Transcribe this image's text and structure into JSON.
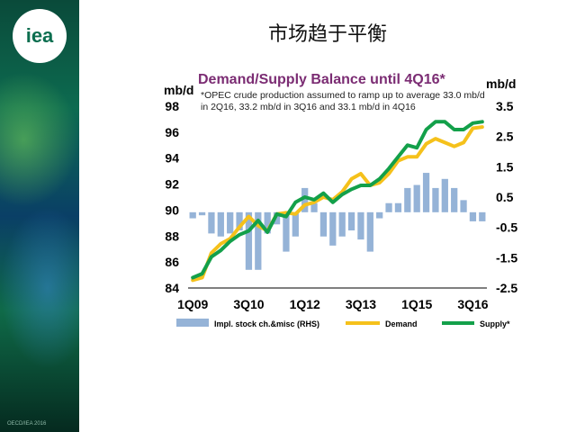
{
  "slide": {
    "title": "市场趋于平衡",
    "logo_text": "iea",
    "footer": "OECD/IEA 2016"
  },
  "colors": {
    "bar": "#95b3d7",
    "demand": "#f5c11b",
    "supply": "#13a04a",
    "title": "#7b2c73"
  },
  "chart_data": {
    "type": "bar+line",
    "title": "Demand/Supply Balance until 4Q16*",
    "note": "*OPEC crude production assumed to ramp up to average 33.0 mb/d in 2Q16, 33.2 mb/d in 3Q16 and 33.1 mb/d in 4Q16",
    "ylabel_left": "mb/d",
    "ylabel_right": "mb/d",
    "ylim_left": [
      84,
      98
    ],
    "ylim_right": [
      -2.5,
      3.5
    ],
    "yticks_left": [
      "84",
      "86",
      "88",
      "90",
      "92",
      "94",
      "96",
      "98"
    ],
    "yticks_right": [
      "-2.5",
      "-1.5",
      "-0.5",
      "0.5",
      "1.5",
      "2.5",
      "3.5"
    ],
    "xtick_labels": [
      "1Q09",
      "3Q10",
      "1Q12",
      "3Q13",
      "1Q15",
      "3Q16"
    ],
    "categories": [
      "1Q09",
      "2Q09",
      "3Q09",
      "4Q09",
      "1Q10",
      "2Q10",
      "3Q10",
      "4Q10",
      "1Q11",
      "2Q11",
      "3Q11",
      "4Q11",
      "1Q12",
      "2Q12",
      "3Q12",
      "4Q12",
      "1Q13",
      "2Q13",
      "3Q13",
      "4Q13",
      "1Q14",
      "2Q14",
      "3Q14",
      "4Q14",
      "1Q15",
      "2Q15",
      "3Q15",
      "4Q15",
      "1Q16",
      "2Q16",
      "3Q16",
      "4Q16"
    ],
    "series": [
      {
        "name": "Impl. stock ch.&misc (RHS)",
        "type": "bar",
        "axis": "right",
        "values": [
          -0.2,
          -0.1,
          -0.7,
          -0.8,
          -0.7,
          -0.6,
          -1.9,
          -1.9,
          -0.7,
          -0.4,
          -1.3,
          -0.8,
          0.8,
          0.3,
          -0.8,
          -1.1,
          -0.8,
          -0.6,
          -0.9,
          -1.3,
          -0.2,
          0.3,
          0.3,
          0.8,
          0.9,
          1.3,
          0.8,
          1.1,
          0.8,
          0.4,
          -0.3,
          -0.3
        ]
      },
      {
        "name": "Demand",
        "type": "line",
        "axis": "left",
        "values": [
          84.6,
          84.8,
          86.7,
          87.4,
          87.8,
          88.7,
          89.5,
          88.8,
          88.4,
          89.7,
          89.8,
          89.7,
          90.4,
          90.6,
          91.0,
          90.8,
          91.4,
          92.4,
          92.8,
          91.9,
          92.1,
          92.8,
          93.8,
          94.1,
          94.1,
          95.1,
          95.5,
          95.2,
          94.9,
          95.2,
          96.3,
          96.4
        ]
      },
      {
        "name": "Supply*",
        "type": "line",
        "axis": "left",
        "values": [
          84.8,
          85.1,
          86.4,
          86.9,
          87.6,
          88.1,
          88.4,
          89.2,
          88.3,
          89.7,
          89.5,
          90.6,
          91.0,
          90.8,
          91.3,
          90.6,
          91.2,
          91.6,
          91.9,
          91.9,
          92.4,
          93.2,
          94.1,
          95.0,
          94.8,
          96.2,
          96.8,
          96.8,
          96.2,
          96.2,
          96.7,
          96.8
        ]
      }
    ],
    "legend_placement": "bottom",
    "grid": false
  }
}
